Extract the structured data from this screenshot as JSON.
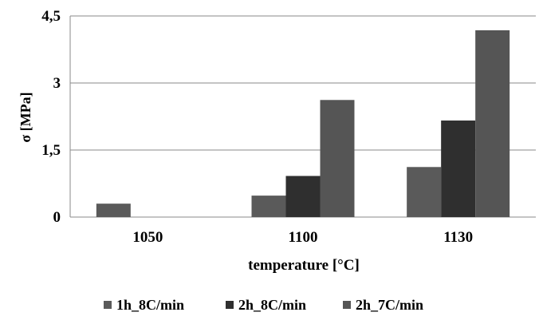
{
  "chart_data": {
    "type": "bar",
    "title": "",
    "xlabel": "temperature [°C]",
    "ylabel": "σ [MPa]",
    "categories": [
      "1050",
      "1100",
      "1130"
    ],
    "ylim": [
      0,
      4.5
    ],
    "yticks": [
      {
        "value": 0,
        "label": "0"
      },
      {
        "value": 1.5,
        "label": "1,5"
      },
      {
        "value": 3,
        "label": "3"
      },
      {
        "value": 4.5,
        "label": "4,5"
      }
    ],
    "grid": true,
    "legend_position": "bottom",
    "series": [
      {
        "name": "1h_8C/min",
        "color": "#5a5a5a",
        "values": [
          0.3,
          0.48,
          1.12
        ]
      },
      {
        "name": "2h_8C/min",
        "color": "#2f2f2f",
        "values": [
          null,
          0.92,
          2.16
        ]
      },
      {
        "name": "2h_7C/min",
        "color": "#555555",
        "values": [
          null,
          2.62,
          4.18
        ]
      }
    ]
  }
}
